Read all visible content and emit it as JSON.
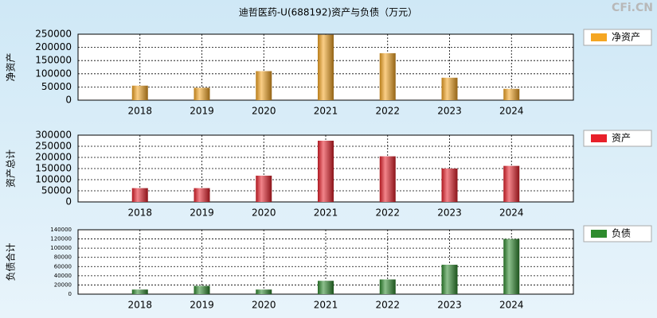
{
  "title": "迪哲医药-U(688192)资产与负债（万元）",
  "watermark": "CFi.CN",
  "chart_data": [
    {
      "type": "bar",
      "y_label": "净资产",
      "categories": [
        "2018",
        "2019",
        "2020",
        "2021",
        "2022",
        "2023",
        "2024"
      ],
      "series": [
        {
          "name": "净资产",
          "color": "#f5a623",
          "values": [
            55000,
            47000,
            110000,
            248000,
            178000,
            85000,
            43000
          ]
        }
      ],
      "ylim": [
        0,
        250000
      ],
      "yticks": [
        0,
        50000,
        100000,
        150000,
        200000,
        250000
      ],
      "grid": true
    },
    {
      "type": "bar",
      "y_label": "资产总计",
      "categories": [
        "2018",
        "2019",
        "2020",
        "2021",
        "2022",
        "2023",
        "2024"
      ],
      "series": [
        {
          "name": "资产",
          "color": "#e8202a",
          "values": [
            62000,
            62000,
            118000,
            275000,
            205000,
            150000,
            162000
          ]
        }
      ],
      "ylim": [
        0,
        300000
      ],
      "yticks": [
        0,
        50000,
        100000,
        150000,
        200000,
        250000,
        300000
      ],
      "grid": true
    },
    {
      "type": "bar",
      "y_label": "负债合计",
      "categories": [
        "2018",
        "2019",
        "2020",
        "2021",
        "2022",
        "2023",
        "2024"
      ],
      "series": [
        {
          "name": "负债",
          "color": "#2e8b2e",
          "values": [
            10000,
            18000,
            10000,
            29000,
            32000,
            64000,
            120000
          ]
        }
      ],
      "ylim": [
        0,
        140000
      ],
      "yticks": [
        0,
        20000,
        40000,
        60000,
        80000,
        100000,
        120000,
        140000
      ],
      "grid": true
    }
  ]
}
